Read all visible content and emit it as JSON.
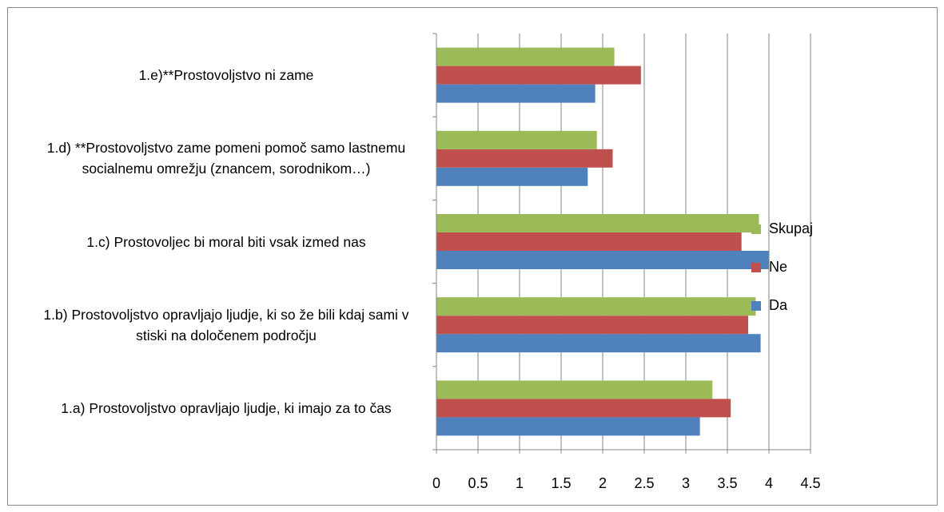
{
  "chart_data": {
    "type": "barh",
    "categories": [
      "1.a) Prostovoljstvo opravljajo ljudje, ki imajo za to čas",
      "1.b) Prostovoljstvo opravljajo ljudje, ki so že bili kdaj sami v stiski na določenem področju",
      "1.c) Prostovoljec bi moral biti vsak izmed nas",
      "1.d) **Prostovoljstvo zame pomeni pomoč samo lastnemu socialnemu omrežju (znancem, sorodnikom…)",
      "1.e)**Prostovoljstvo ni zame"
    ],
    "series": [
      {
        "name": "Da",
        "color": "#4f81bd",
        "values": [
          3.17,
          3.9,
          4.0,
          1.82,
          1.91
        ]
      },
      {
        "name": "Ne",
        "color": "#c0504d",
        "values": [
          3.54,
          3.75,
          3.67,
          2.12,
          2.46
        ]
      },
      {
        "name": "Skupaj",
        "color": "#9bbb59",
        "values": [
          3.32,
          3.84,
          3.88,
          1.93,
          2.14
        ]
      }
    ],
    "xlim": [
      0,
      4.5
    ],
    "xticks": [
      0,
      0.5,
      1,
      1.5,
      2,
      2.5,
      3,
      3.5,
      4,
      4.5
    ],
    "grid": true,
    "legend": "right"
  }
}
